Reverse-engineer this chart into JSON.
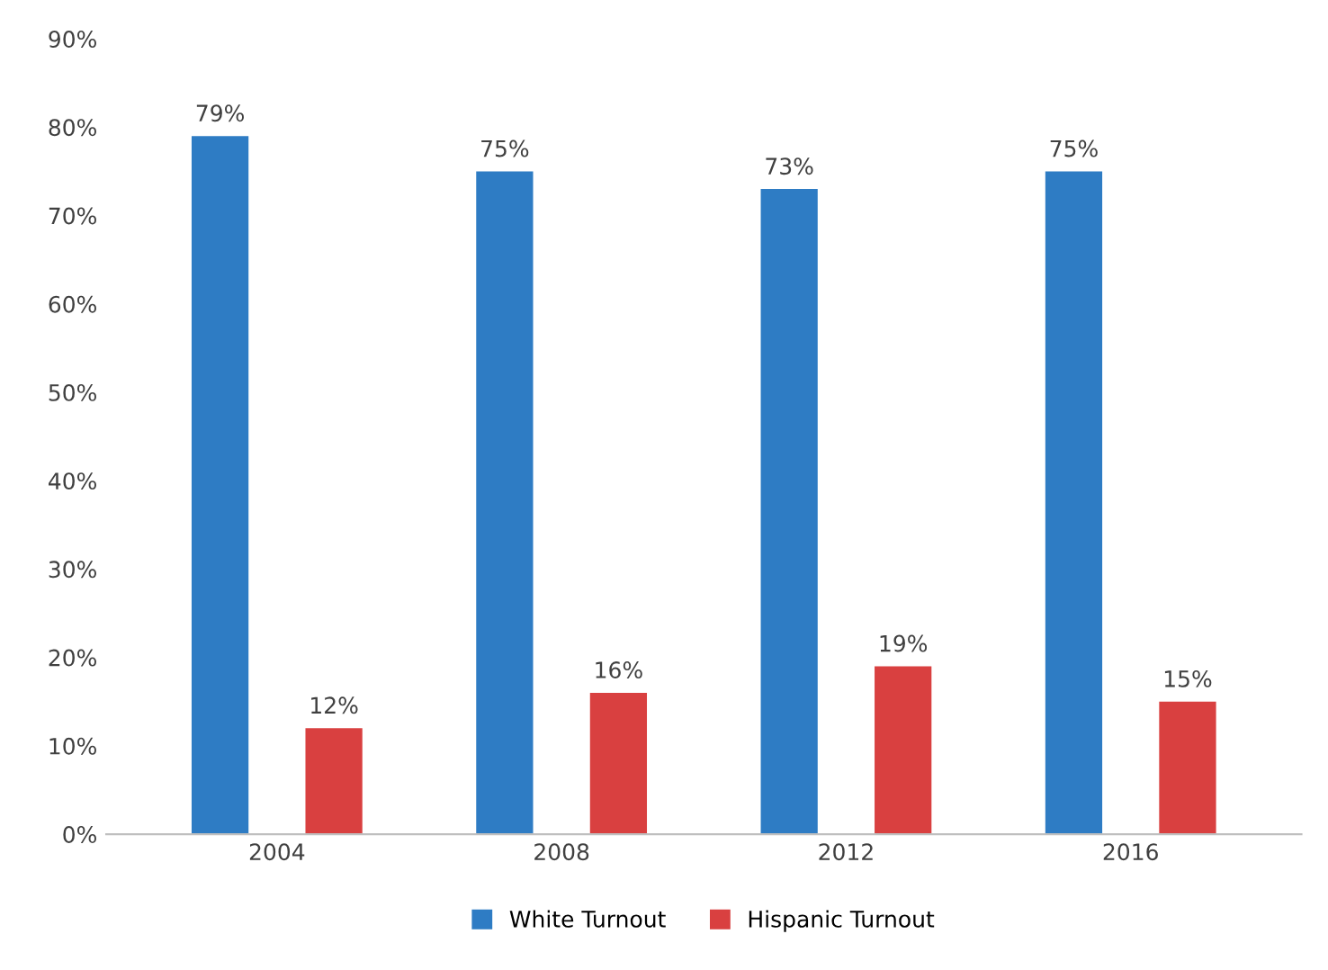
{
  "chart_data": {
    "type": "bar",
    "categories": [
      "2004",
      "2008",
      "2012",
      "2016"
    ],
    "series": [
      {
        "name": "White Turnout",
        "color": "#2e7cc4",
        "values": [
          79,
          75,
          73,
          75
        ],
        "value_labels": [
          "79%",
          "75%",
          "73%",
          "75%"
        ]
      },
      {
        "name": "Hispanic Turnout",
        "color": "#d94040",
        "values": [
          12,
          16,
          19,
          15
        ],
        "value_labels": [
          "12%",
          "16%",
          "19%",
          "15%"
        ]
      }
    ],
    "ylim": [
      0,
      90
    ],
    "yticks": [
      {
        "value": 0,
        "label": "0%"
      },
      {
        "value": 10,
        "label": "10%"
      },
      {
        "value": 20,
        "label": "20%"
      },
      {
        "value": 30,
        "label": "30%"
      },
      {
        "value": 40,
        "label": "40%"
      },
      {
        "value": 50,
        "label": "50%"
      },
      {
        "value": 60,
        "label": "60%"
      },
      {
        "value": 70,
        "label": "70%"
      },
      {
        "value": 80,
        "label": "80%"
      },
      {
        "value": 90,
        "label": "90%"
      }
    ],
    "grid": false,
    "legend": "bottom"
  }
}
